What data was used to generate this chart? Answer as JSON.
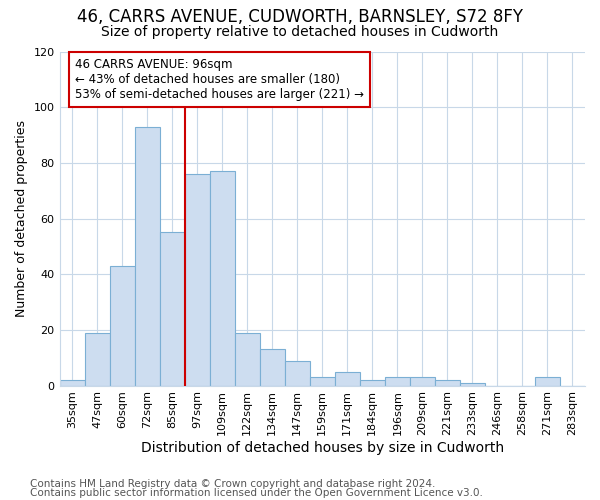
{
  "title": "46, CARRS AVENUE, CUDWORTH, BARNSLEY, S72 8FY",
  "subtitle": "Size of property relative to detached houses in Cudworth",
  "xlabel": "Distribution of detached houses by size in Cudworth",
  "ylabel": "Number of detached properties",
  "categories": [
    "35sqm",
    "47sqm",
    "60sqm",
    "72sqm",
    "85sqm",
    "97sqm",
    "109sqm",
    "122sqm",
    "134sqm",
    "147sqm",
    "159sqm",
    "171sqm",
    "184sqm",
    "196sqm",
    "209sqm",
    "221sqm",
    "233sqm",
    "246sqm",
    "258sqm",
    "271sqm",
    "283sqm"
  ],
  "values": [
    2,
    19,
    43,
    93,
    55,
    76,
    77,
    19,
    13,
    9,
    3,
    5,
    2,
    3,
    3,
    2,
    1,
    0,
    0,
    3,
    0
  ],
  "bar_color": "#cdddf0",
  "bar_edge_color": "#7bafd4",
  "vline_x_index": 5,
  "vline_color": "#cc0000",
  "annotation_text": "46 CARRS AVENUE: 96sqm\n← 43% of detached houses are smaller (180)\n53% of semi-detached houses are larger (221) →",
  "annotation_box_facecolor": "#ffffff",
  "annotation_box_edgecolor": "#cc0000",
  "ylim": [
    0,
    120
  ],
  "yticks": [
    0,
    20,
    40,
    60,
    80,
    100,
    120
  ],
  "bg_color": "#ffffff",
  "plot_bg_color": "#ffffff",
  "grid_color": "#c8d8e8",
  "title_fontsize": 12,
  "subtitle_fontsize": 10,
  "ylabel_fontsize": 9,
  "xlabel_fontsize": 10,
  "tick_fontsize": 8,
  "annotation_fontsize": 8.5,
  "footer_fontsize": 7.5,
  "footer1": "Contains HM Land Registry data © Crown copyright and database right 2024.",
  "footer2": "Contains public sector information licensed under the Open Government Licence v3.0."
}
